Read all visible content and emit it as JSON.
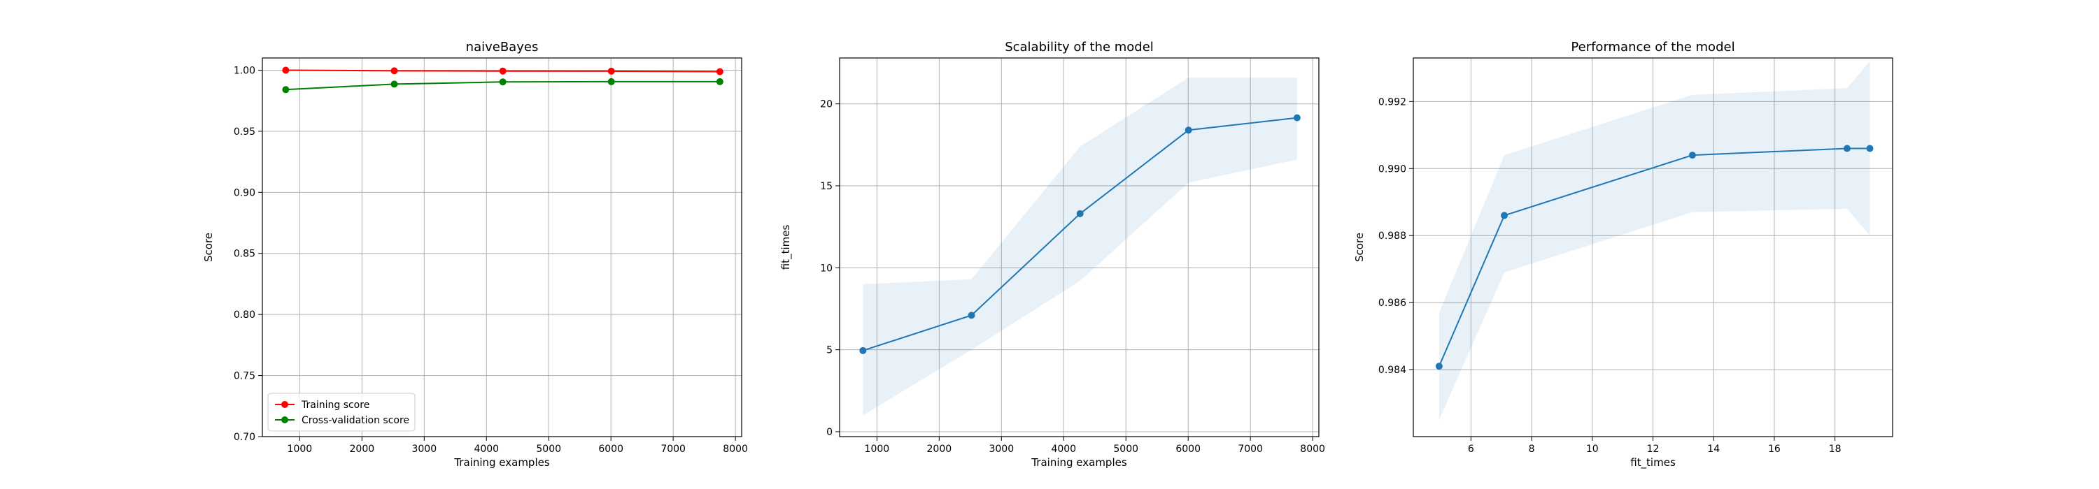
{
  "chart_data": [
    {
      "type": "line",
      "title": "naiveBayes",
      "xlabel": "Training examples",
      "ylabel": "Score",
      "xlim": [
        400,
        8100
      ],
      "ylim": [
        0.7,
        1.01
      ],
      "xticks": [
        1000,
        2000,
        3000,
        4000,
        5000,
        6000,
        7000,
        8000
      ],
      "yticks": [
        0.7,
        0.75,
        0.8,
        0.85,
        0.9,
        0.95,
        1.0
      ],
      "ytick_decimals": 2,
      "grid": true,
      "legend": "lower-left",
      "x": [
        775,
        2519,
        4263,
        6006,
        7750
      ],
      "series": [
        {
          "name": "Training score",
          "color": "#ff0000",
          "values": [
            1.0,
            0.9995,
            0.9993,
            0.9992,
            0.9988
          ],
          "band": [
            0.0005,
            0.0005,
            0.0005,
            0.0005,
            0.0005
          ]
        },
        {
          "name": "Cross-validation score",
          "color": "#008000",
          "values": [
            0.9841,
            0.9886,
            0.9904,
            0.9906,
            0.9906
          ],
          "band": [
            0.0005,
            0.0005,
            0.0005,
            0.0005,
            0.0005
          ]
        }
      ]
    },
    {
      "type": "line",
      "title": "Scalability of the model",
      "xlabel": "Training examples",
      "ylabel": "fit_times",
      "xlim": [
        400,
        8100
      ],
      "ylim": [
        -0.3,
        22.8
      ],
      "xticks": [
        1000,
        2000,
        3000,
        4000,
        5000,
        6000,
        7000,
        8000
      ],
      "yticks": [
        0,
        5,
        10,
        15,
        20
      ],
      "ytick_decimals": 0,
      "grid": true,
      "legend": "none",
      "x": [
        775,
        2519,
        4263,
        6006,
        7750
      ],
      "series": [
        {
          "name": "",
          "color": "#1f77b4",
          "values": [
            4.95,
            7.1,
            13.3,
            18.4,
            19.15
          ],
          "lower": [
            1.0,
            5.0,
            9.2,
            15.2,
            16.6
          ],
          "upper": [
            9.0,
            9.3,
            17.4,
            21.6,
            21.6
          ]
        }
      ]
    },
    {
      "type": "line",
      "title": "Performance of the model",
      "xlabel": "fit_times",
      "ylabel": "Score",
      "xlim": [
        4.1,
        19.9
      ],
      "ylim": [
        0.982,
        0.9933
      ],
      "xticks": [
        6,
        8,
        10,
        12,
        14,
        16,
        18
      ],
      "yticks": [
        0.984,
        0.986,
        0.988,
        0.99,
        0.992
      ],
      "ytick_decimals": 3,
      "grid": true,
      "legend": "none",
      "x": [
        4.95,
        7.1,
        13.3,
        18.4,
        19.15
      ],
      "series": [
        {
          "name": "",
          "color": "#1f77b4",
          "values": [
            0.9841,
            0.9886,
            0.9904,
            0.9906,
            0.9906
          ],
          "lower": [
            0.9825,
            0.9869,
            0.9887,
            0.9888,
            0.988
          ],
          "upper": [
            0.9857,
            0.9904,
            0.9922,
            0.9924,
            0.9932
          ]
        }
      ]
    }
  ]
}
